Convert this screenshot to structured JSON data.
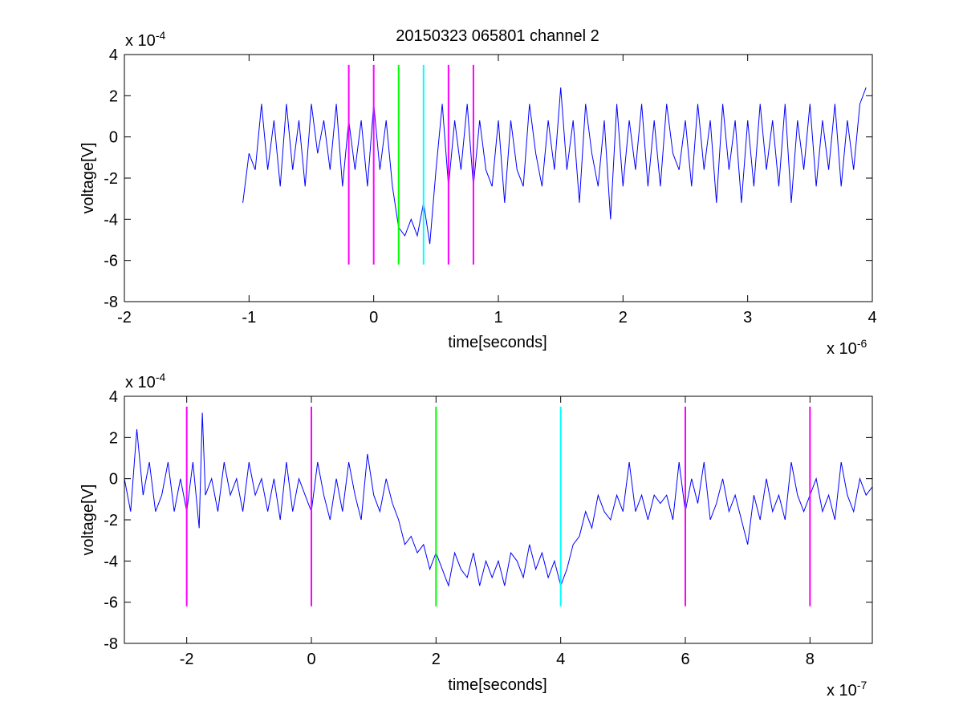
{
  "figure": {
    "title": "20150323 065801 channel 2"
  },
  "chart_data": [
    {
      "type": "line",
      "panel": "top",
      "title": "20150323 065801 channel 2",
      "xlabel": "time[seconds]",
      "ylabel": "voltage[V]",
      "x_multiplier": "x 10",
      "x_exponent": "-6",
      "y_multiplier": "x 10",
      "y_exponent": "-4",
      "xlim": [
        -2,
        4
      ],
      "ylim": [
        -8,
        4
      ],
      "x_ticks": [
        -2,
        -1,
        0,
        1,
        2,
        3,
        4
      ],
      "y_ticks": [
        -8,
        -6,
        -4,
        -2,
        0,
        2,
        4
      ],
      "grid": false,
      "series": [
        {
          "color": "#0000ff",
          "trace_start": -1.05,
          "trace_end": 3.95,
          "x": [
            -1.05,
            -1.0,
            -0.95,
            -0.9,
            -0.85,
            -0.8,
            -0.75,
            -0.7,
            -0.65,
            -0.6,
            -0.55,
            -0.5,
            -0.45,
            -0.4,
            -0.35,
            -0.3,
            -0.25,
            -0.2,
            -0.15,
            -0.1,
            -0.05,
            0.0,
            0.05,
            0.1,
            0.15,
            0.2,
            0.25,
            0.3,
            0.35,
            0.4,
            0.45,
            0.5,
            0.55,
            0.6,
            0.65,
            0.7,
            0.75,
            0.8,
            0.85,
            0.9,
            0.95,
            1.0,
            1.05,
            1.1,
            1.15,
            1.2,
            1.25,
            1.3,
            1.35,
            1.4,
            1.45,
            1.5,
            1.55,
            1.6,
            1.65,
            1.7,
            1.75,
            1.8,
            1.85,
            1.9,
            1.95,
            2.0,
            2.05,
            2.1,
            2.15,
            2.2,
            2.25,
            2.3,
            2.35,
            2.4,
            2.45,
            2.5,
            2.55,
            2.6,
            2.65,
            2.7,
            2.75,
            2.8,
            2.85,
            2.9,
            2.95,
            3.0,
            3.05,
            3.1,
            3.15,
            3.2,
            3.25,
            3.3,
            3.35,
            3.4,
            3.45,
            3.5,
            3.55,
            3.6,
            3.65,
            3.7,
            3.75,
            3.8,
            3.85,
            3.9,
            3.95
          ],
          "values": [
            -3.2,
            -0.8,
            -1.6,
            1.6,
            -1.6,
            0.8,
            -2.4,
            1.6,
            -1.6,
            0.8,
            -2.4,
            1.6,
            -0.8,
            0.8,
            -1.6,
            1.6,
            -2.4,
            0.8,
            -1.6,
            0.8,
            -2.4,
            1.6,
            -1.6,
            0.8,
            -2.4,
            -4.4,
            -4.8,
            -4.0,
            -4.8,
            -3.2,
            -5.2,
            -1.6,
            1.6,
            -2.4,
            0.8,
            -1.6,
            1.6,
            -2.4,
            0.8,
            -1.6,
            -2.4,
            0.8,
            -3.2,
            0.8,
            -1.6,
            -2.4,
            1.6,
            -0.8,
            -2.4,
            0.8,
            -1.6,
            2.4,
            -1.6,
            0.8,
            -3.2,
            1.6,
            -0.8,
            -2.4,
            0.8,
            -4.0,
            1.6,
            -2.4,
            0.8,
            -1.6,
            1.6,
            -2.4,
            0.8,
            -2.4,
            1.6,
            -0.8,
            -1.6,
            0.8,
            -2.4,
            1.6,
            -1.6,
            0.8,
            -3.2,
            1.6,
            -1.6,
            0.8,
            -3.2,
            0.8,
            -2.4,
            1.6,
            -1.6,
            0.8,
            -2.4,
            1.6,
            -3.2,
            0.8,
            -1.6,
            1.6,
            -2.4,
            0.8,
            -1.6,
            1.6,
            -2.4,
            0.8,
            -1.6,
            1.6,
            2.4
          ]
        }
      ],
      "markers": [
        {
          "x": -0.2,
          "color": "#ff00ff"
        },
        {
          "x": 0.0,
          "color": "#ff00ff"
        },
        {
          "x": 0.2,
          "color": "#00ff00"
        },
        {
          "x": 0.4,
          "color": "#00ffff"
        },
        {
          "x": 0.6,
          "color": "#ff00ff"
        },
        {
          "x": 0.8,
          "color": "#ff00ff"
        }
      ],
      "marker_range": [
        -6.2,
        3.5
      ]
    },
    {
      "type": "line",
      "panel": "bottom",
      "xlabel": "time[seconds]",
      "ylabel": "voltage[V]",
      "x_multiplier": "x 10",
      "x_exponent": "-7",
      "y_multiplier": "x 10",
      "y_exponent": "-4",
      "xlim": [
        -3,
        9
      ],
      "ylim": [
        -8,
        4
      ],
      "x_ticks": [
        -2,
        0,
        2,
        4,
        6,
        8
      ],
      "y_ticks": [
        -8,
        -6,
        -4,
        -2,
        0,
        2,
        4
      ],
      "grid": false,
      "series": [
        {
          "color": "#0000ff",
          "x": [
            -3.0,
            -2.9,
            -2.8,
            -2.7,
            -2.6,
            -2.5,
            -2.4,
            -2.3,
            -2.2,
            -2.1,
            -2.0,
            -1.9,
            -1.8,
            -1.75,
            -1.7,
            -1.6,
            -1.5,
            -1.4,
            -1.3,
            -1.2,
            -1.1,
            -1.0,
            -0.9,
            -0.8,
            -0.7,
            -0.6,
            -0.5,
            -0.4,
            -0.3,
            -0.2,
            -0.1,
            0.0,
            0.1,
            0.2,
            0.3,
            0.4,
            0.5,
            0.6,
            0.7,
            0.8,
            0.9,
            1.0,
            1.1,
            1.2,
            1.3,
            1.4,
            1.5,
            1.6,
            1.7,
            1.8,
            1.9,
            2.0,
            2.1,
            2.2,
            2.3,
            2.4,
            2.5,
            2.6,
            2.7,
            2.8,
            2.9,
            3.0,
            3.1,
            3.2,
            3.3,
            3.4,
            3.5,
            3.6,
            3.7,
            3.8,
            3.9,
            4.0,
            4.1,
            4.2,
            4.3,
            4.4,
            4.5,
            4.6,
            4.7,
            4.8,
            4.9,
            5.0,
            5.1,
            5.2,
            5.3,
            5.4,
            5.5,
            5.6,
            5.7,
            5.8,
            5.9,
            6.0,
            6.1,
            6.2,
            6.3,
            6.4,
            6.5,
            6.6,
            6.7,
            6.8,
            6.9,
            7.0,
            7.1,
            7.2,
            7.3,
            7.4,
            7.5,
            7.6,
            7.7,
            7.8,
            7.9,
            8.0,
            8.1,
            8.2,
            8.3,
            8.4,
            8.5,
            8.6,
            8.7,
            8.8,
            8.9,
            9.0
          ],
          "values": [
            0.0,
            -1.6,
            2.4,
            -0.8,
            0.8,
            -1.6,
            -0.8,
            0.8,
            -1.6,
            0.0,
            -1.6,
            0.8,
            -2.4,
            3.2,
            -0.8,
            0.0,
            -1.6,
            0.8,
            -0.8,
            0.0,
            -1.6,
            0.8,
            -0.8,
            0.0,
            -1.6,
            0.0,
            -2.0,
            0.8,
            -1.6,
            0.0,
            -0.8,
            -1.6,
            0.8,
            -0.8,
            -2.0,
            0.0,
            -1.6,
            0.8,
            -0.8,
            -2.0,
            1.2,
            -0.8,
            -1.6,
            0.0,
            -1.2,
            -2.0,
            -3.2,
            -2.8,
            -3.6,
            -3.2,
            -4.4,
            -3.6,
            -4.4,
            -5.2,
            -3.6,
            -4.4,
            -4.8,
            -3.6,
            -5.2,
            -4.0,
            -4.8,
            -4.0,
            -5.2,
            -3.6,
            -4.0,
            -4.8,
            -3.2,
            -4.4,
            -3.6,
            -4.8,
            -4.0,
            -5.2,
            -4.4,
            -3.2,
            -2.8,
            -1.6,
            -2.4,
            -0.8,
            -1.6,
            -2.0,
            -0.8,
            -1.6,
            0.8,
            -1.6,
            -0.8,
            -2.0,
            -0.8,
            -1.2,
            -0.8,
            -2.0,
            0.8,
            -1.6,
            0.0,
            -1.2,
            0.8,
            -2.0,
            -1.2,
            0.0,
            -1.6,
            -0.8,
            -2.0,
            -3.2,
            -0.8,
            -2.0,
            0.0,
            -1.6,
            -0.8,
            -2.0,
            0.8,
            -0.8,
            -1.6,
            -0.8,
            0.0,
            -1.6,
            -0.8,
            -2.0,
            0.8,
            -0.8,
            -1.6,
            0.0,
            -0.8,
            -0.4
          ]
        }
      ],
      "markers": [
        {
          "x": -2,
          "color": "#ff00ff"
        },
        {
          "x": 0,
          "color": "#ff00ff"
        },
        {
          "x": 2,
          "color": "#00ff00"
        },
        {
          "x": 4,
          "color": "#00ffff"
        },
        {
          "x": 6,
          "color": "#ff00ff"
        },
        {
          "x": 8,
          "color": "#ff00ff"
        }
      ],
      "marker_range": [
        -6.2,
        3.5
      ]
    }
  ]
}
